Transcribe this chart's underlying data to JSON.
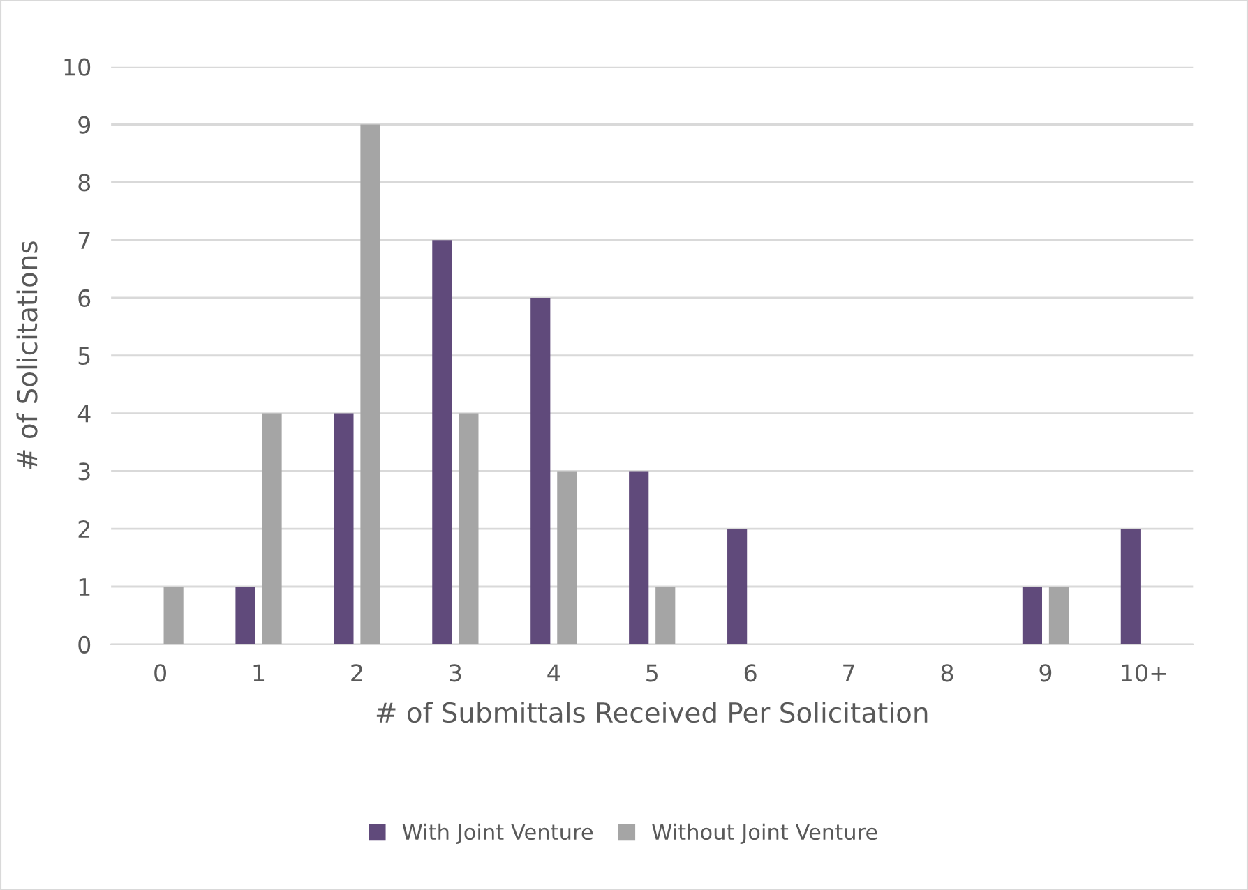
{
  "chart_data": {
    "type": "bar",
    "xlabel": "# of Submittals Received Per Solicitation",
    "ylabel": "# of Solicitations",
    "categories": [
      "0",
      "1",
      "2",
      "3",
      "4",
      "5",
      "6",
      "7",
      "8",
      "9",
      "10+"
    ],
    "series": [
      {
        "name": "With Joint Venture",
        "color": "#604a7b",
        "values": [
          0,
          1,
          4,
          7,
          6,
          3,
          2,
          0,
          0,
          1,
          2
        ]
      },
      {
        "name": "Without Joint Venture",
        "color": "#a5a5a5",
        "values": [
          1,
          4,
          9,
          4,
          3,
          1,
          0,
          0,
          0,
          1,
          0
        ]
      }
    ],
    "ylim": [
      0,
      10
    ],
    "yticks": [
      0,
      1,
      2,
      3,
      4,
      5,
      6,
      7,
      8,
      9,
      10
    ],
    "grid": "y",
    "legend": "bottom"
  }
}
